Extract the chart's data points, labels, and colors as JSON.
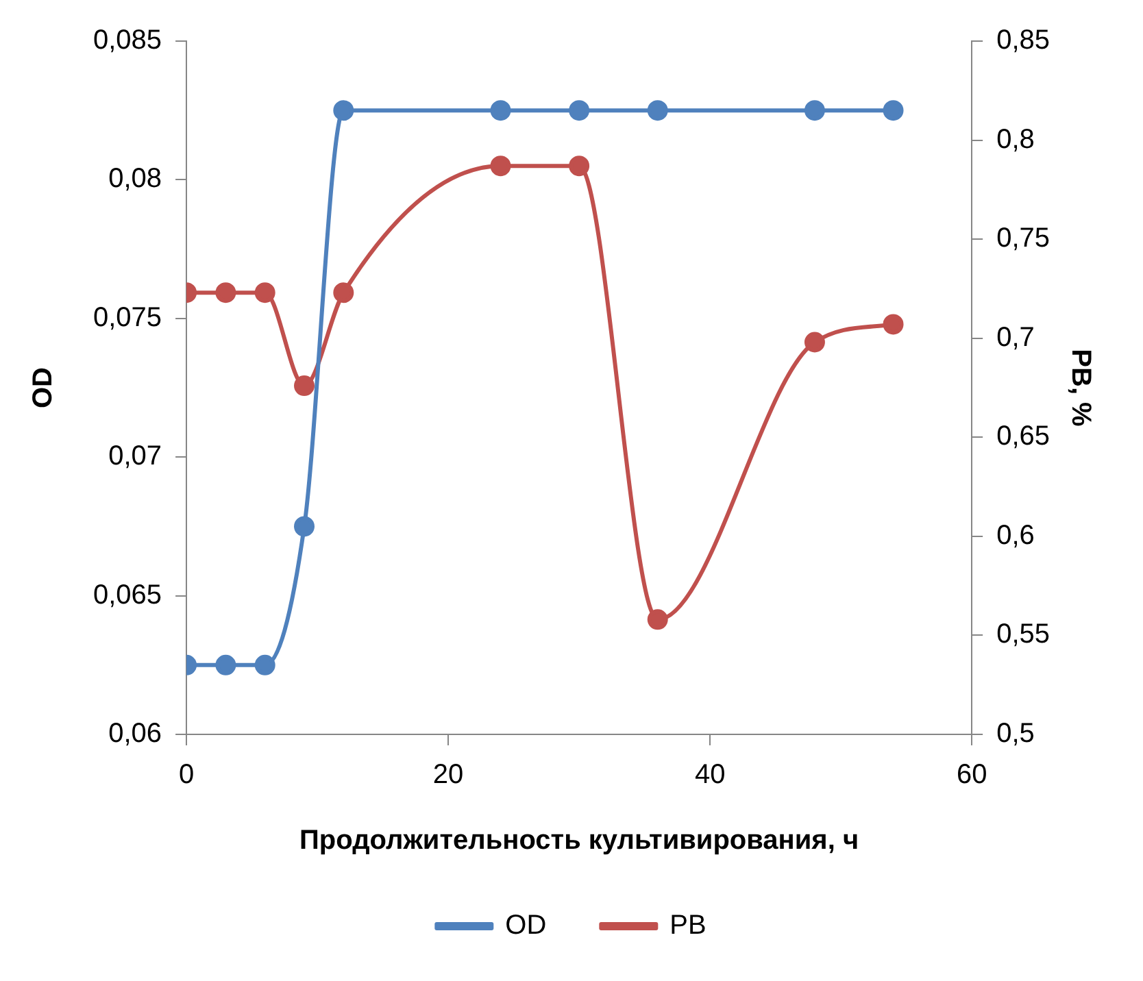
{
  "chart_data": {
    "type": "line",
    "xlabel": "Продолжительность культивирования, ч",
    "ylabel": "OD",
    "y2label": "PB, %",
    "x": [
      0,
      3,
      6,
      9,
      12,
      24,
      30,
      36,
      48,
      54
    ],
    "series": [
      {
        "name": "OD",
        "color": "#4f81bd",
        "values": [
          0.0625,
          0.0625,
          0.0625,
          0.0675,
          0.0825,
          0.0825,
          0.0825,
          0.0825,
          0.0825,
          0.0825
        ]
      },
      {
        "name": "PB",
        "color": "#c0504d",
        "axis": "y2",
        "values": [
          0.723,
          0.723,
          0.723,
          0.676,
          0.723,
          0.787,
          0.787,
          0.558,
          0.698,
          0.707
        ]
      }
    ],
    "xlim": [
      0,
      60
    ],
    "xticks": [
      0,
      20,
      40,
      60
    ],
    "ylim": [
      0.06,
      0.085
    ],
    "yticks": [
      {
        "value": 0.06,
        "label": "0,06"
      },
      {
        "value": 0.065,
        "label": "0,065"
      },
      {
        "value": 0.07,
        "label": "0,07"
      },
      {
        "value": 0.075,
        "label": "0,075"
      },
      {
        "value": 0.08,
        "label": "0,08"
      },
      {
        "value": 0.085,
        "label": "0,085"
      }
    ],
    "y2lim": [
      0.5,
      0.85
    ],
    "y2ticks": [
      {
        "value": 0.5,
        "label": "0,5"
      },
      {
        "value": 0.55,
        "label": "0,55"
      },
      {
        "value": 0.6,
        "label": "0,6"
      },
      {
        "value": 0.65,
        "label": "0,65"
      },
      {
        "value": 0.7,
        "label": "0,7"
      },
      {
        "value": 0.75,
        "label": "0,75"
      },
      {
        "value": 0.8,
        "label": "0,8"
      },
      {
        "value": 0.85,
        "label": "0,85"
      }
    ],
    "grid": false,
    "legend": "bottom",
    "marker": "circle",
    "line_style": "solid"
  }
}
